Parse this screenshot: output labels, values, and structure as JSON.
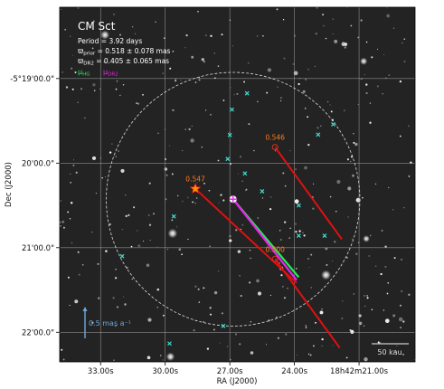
{
  "chart_data": {
    "type": "scatter",
    "title": "CM Sct",
    "info_lines": [
      {
        "symbol": "",
        "text": "Period =   3.92 days"
      },
      {
        "symbol": "ϖ",
        "sub": "prior",
        "text": " = 0.518 ± 0.078 mas"
      },
      {
        "symbol": "ϖ",
        "sub": "DR2",
        "text": " = 0.405 ± 0.065 mas"
      }
    ],
    "legend": [
      {
        "symbol": "μ",
        "sub": "HG",
        "color": "#22ee55"
      },
      {
        "symbol": "μ",
        "sub": "DR2",
        "color": "#ee22ee"
      }
    ],
    "legend_placement": "top-left",
    "xlabel": "RA (J2000)",
    "ylabel": "Dec (J2000)",
    "x_ticks": [
      "33.00s",
      "30.00s",
      "27.00s",
      "24.00s",
      "18h42m21.00s"
    ],
    "y_ticks": [
      "-5°19'00.0\"",
      "20'00.0\"",
      "21'00.0\"",
      "22'00.0\""
    ],
    "grid": true,
    "x_range_s": [
      34.9,
      18.4
    ],
    "y_range_arcsec": [
      -50.6,
      201.0
    ],
    "target": {
      "ra_s": 26.85,
      "dec_arcsec": 85.6
    },
    "search_radius_arcsec": 90,
    "companions": [
      {
        "label": "0.546",
        "ra_s": 24.9,
        "dec_arcsec": 48.7,
        "pm_end": {
          "ra_s": 21.8,
          "dec_arcsec": 114.0
        }
      },
      {
        "label": "0.547",
        "ra_s": 28.6,
        "dec_arcsec": 78.2,
        "pm_end": {
          "ra_s": 23.9,
          "dec_arcsec": 145.0
        }
      },
      {
        "label": "0.500",
        "ra_s": 24.9,
        "dec_arcsec": 128.0,
        "pm_end": {
          "ra_s": 21.9,
          "dec_arcsec": 191.0
        }
      }
    ],
    "target_pm": {
      "hg_end": {
        "ra_s": 23.8,
        "dec_arcsec": 141.0
      },
      "dr2_end": {
        "ra_s": 23.9,
        "dec_arcsec": 143.0
      }
    },
    "field_stars": [
      {
        "ra_s": 26.9,
        "dec_arcsec": 22.0
      },
      {
        "ra_s": 26.2,
        "dec_arcsec": 10.5
      },
      {
        "ra_s": 27.0,
        "dec_arcsec": 40.0
      },
      {
        "ra_s": 27.1,
        "dec_arcsec": 57.0
      },
      {
        "ra_s": 26.3,
        "dec_arcsec": 67.3
      },
      {
        "ra_s": 25.5,
        "dec_arcsec": 80.0
      },
      {
        "ra_s": 23.8,
        "dec_arcsec": 90.0
      },
      {
        "ra_s": 22.2,
        "dec_arcsec": 32.5
      },
      {
        "ra_s": 22.9,
        "dec_arcsec": 39.8
      },
      {
        "ra_s": 29.6,
        "dec_arcsec": 97.8
      },
      {
        "ra_s": 23.8,
        "dec_arcsec": 111.5
      },
      {
        "ra_s": 22.6,
        "dec_arcsec": 111.5
      },
      {
        "ra_s": 32.0,
        "dec_arcsec": 126.0
      },
      {
        "ra_s": 27.3,
        "dec_arcsec": 175.5
      },
      {
        "ra_s": 29.8,
        "dec_arcsec": 188.0
      }
    ],
    "pm_scale_bar": {
      "label": "0.5 mas a⁻¹",
      "color": "#6fa8dc"
    },
    "size_scale_bar": {
      "label": "50 kau"
    }
  }
}
